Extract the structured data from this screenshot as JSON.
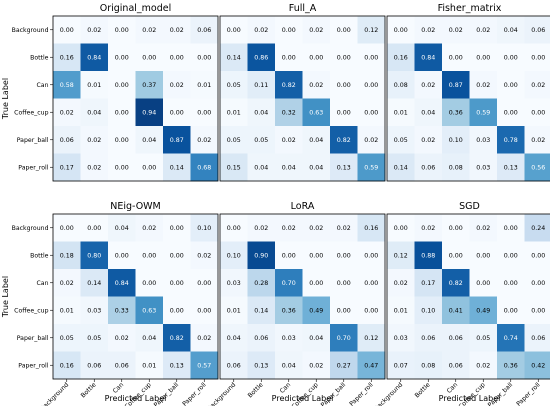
{
  "chart_data": {
    "type": "heatmap",
    "ylabel": "True Label",
    "xlabel": "Predicted Label",
    "categories": [
      "Background",
      "Bottle",
      "Can",
      "Coffee_cup",
      "Paper_ball",
      "Paper_roll"
    ],
    "colormap": "Blues",
    "value_range": [
      0,
      1
    ],
    "panels": [
      {
        "title": "Original_model",
        "values": [
          [
            0.0,
            0.02,
            0.0,
            0.02,
            0.02,
            0.06
          ],
          [
            0.16,
            0.84,
            0.0,
            0.0,
            0.0,
            0.0
          ],
          [
            0.58,
            0.01,
            0.0,
            0.37,
            0.02,
            0.01
          ],
          [
            0.02,
            0.04,
            0.0,
            0.94,
            0.0,
            0.0
          ],
          [
            0.06,
            0.02,
            0.0,
            0.04,
            0.87,
            0.02
          ],
          [
            0.17,
            0.02,
            0.0,
            0.0,
            0.14,
            0.68
          ]
        ]
      },
      {
        "title": "Full_A",
        "values": [
          [
            0.0,
            0.02,
            0.0,
            0.02,
            0.0,
            0.12
          ],
          [
            0.14,
            0.86,
            0.0,
            0.0,
            0.0,
            0.0
          ],
          [
            0.05,
            0.11,
            0.82,
            0.02,
            0.0,
            0.0
          ],
          [
            0.01,
            0.04,
            0.32,
            0.63,
            0.0,
            0.0
          ],
          [
            0.05,
            0.05,
            0.02,
            0.04,
            0.82,
            0.02
          ],
          [
            0.15,
            0.04,
            0.04,
            0.04,
            0.13,
            0.59
          ]
        ]
      },
      {
        "title": "Fisher_matrix",
        "values": [
          [
            0.0,
            0.02,
            0.02,
            0.02,
            0.04,
            0.06
          ],
          [
            0.16,
            0.84,
            0.0,
            0.0,
            0.0,
            0.0
          ],
          [
            0.08,
            0.02,
            0.87,
            0.02,
            0.0,
            0.02
          ],
          [
            0.01,
            0.04,
            0.36,
            0.59,
            0.0,
            0.0
          ],
          [
            0.05,
            0.02,
            0.1,
            0.03,
            0.78,
            0.02
          ],
          [
            0.14,
            0.06,
            0.08,
            0.03,
            0.13,
            0.56
          ]
        ]
      },
      {
        "title": "NEig-OWM",
        "values": [
          [
            0.0,
            0.0,
            0.04,
            0.02,
            0.0,
            0.1
          ],
          [
            0.18,
            0.8,
            0.0,
            0.0,
            0.0,
            0.02
          ],
          [
            0.02,
            0.14,
            0.84,
            0.0,
            0.0,
            0.0
          ],
          [
            0.01,
            0.03,
            0.33,
            0.63,
            0.0,
            0.0
          ],
          [
            0.05,
            0.05,
            0.02,
            0.04,
            0.82,
            0.02
          ],
          [
            0.16,
            0.06,
            0.06,
            0.01,
            0.13,
            0.57
          ]
        ]
      },
      {
        "title": "LoRA",
        "values": [
          [
            0.0,
            0.02,
            0.02,
            0.02,
            0.02,
            0.16
          ],
          [
            0.1,
            0.9,
            0.0,
            0.0,
            0.0,
            0.0
          ],
          [
            0.03,
            0.28,
            0.7,
            0.0,
            0.0,
            0.0
          ],
          [
            0.01,
            0.14,
            0.36,
            0.49,
            0.0,
            0.0
          ],
          [
            0.04,
            0.06,
            0.03,
            0.04,
            0.7,
            0.12
          ],
          [
            0.06,
            0.13,
            0.04,
            0.02,
            0.27,
            0.47
          ]
        ]
      },
      {
        "title": "SGD",
        "values": [
          [
            0.0,
            0.02,
            0.0,
            0.02,
            0.0,
            0.24
          ],
          [
            0.12,
            0.88,
            0.0,
            0.0,
            0.0,
            0.0
          ],
          [
            0.02,
            0.17,
            0.82,
            0.0,
            0.0,
            0.0
          ],
          [
            0.01,
            0.1,
            0.41,
            0.49,
            0.0,
            0.0
          ],
          [
            0.03,
            0.06,
            0.06,
            0.05,
            0.74,
            0.06
          ],
          [
            0.07,
            0.08,
            0.06,
            0.02,
            0.36,
            0.42
          ]
        ]
      }
    ]
  }
}
